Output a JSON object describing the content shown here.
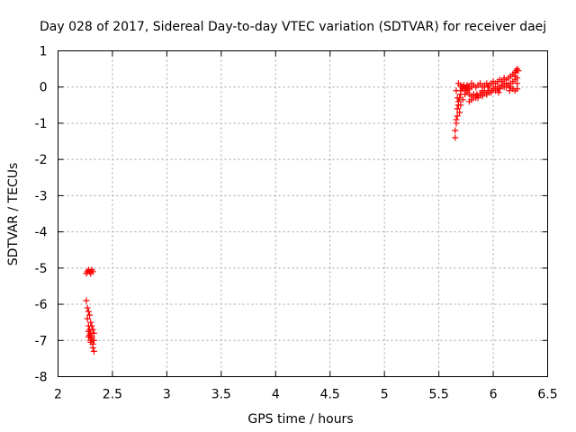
{
  "chart_data": {
    "type": "scatter",
    "title": "Day 028 of 2017, Sidereal Day-to-day VTEC variation (SDTVAR) for receiver daej",
    "xlabel": "GPS time / hours",
    "ylabel": "SDTVAR / TECUs",
    "xlim": [
      2,
      6.5
    ],
    "ylim": [
      -8,
      1
    ],
    "x_ticks": [
      2,
      2.5,
      3,
      3.5,
      4,
      4.5,
      5,
      5.5,
      6,
      6.5
    ],
    "y_ticks": [
      -8,
      -7,
      -6,
      -5,
      -4,
      -3,
      -2,
      -1,
      0,
      1
    ],
    "x_tick_labels": [
      "2",
      "2.5",
      "3",
      "3.5",
      "4",
      "4.5",
      "5",
      "5.5",
      "6",
      "6.5"
    ],
    "y_tick_labels": [
      "-8",
      "-7",
      "-6",
      "-5",
      "-4",
      "-3",
      "-2",
      "-1",
      "0",
      "1"
    ],
    "grid": true,
    "marker": "+",
    "color": "#ff0000",
    "series": [
      {
        "name": "SDTVAR",
        "x": [
          2.26,
          2.27,
          2.28,
          2.29,
          2.3,
          2.31,
          2.32,
          2.26,
          2.27,
          2.27,
          2.28,
          2.28,
          2.28,
          2.29,
          2.29,
          2.3,
          2.3,
          2.3,
          2.31,
          2.31,
          2.32,
          2.32,
          2.33,
          2.33,
          2.33,
          2.32,
          2.31,
          2.3,
          2.29,
          2.28,
          5.65,
          5.65,
          5.66,
          5.66,
          5.67,
          5.67,
          5.68,
          5.68,
          5.69,
          5.7,
          5.7,
          5.71,
          5.72,
          5.73,
          5.74,
          5.75,
          5.76,
          5.77,
          5.78,
          5.8,
          5.82,
          5.84,
          5.86,
          5.88,
          5.9,
          5.92,
          5.94,
          5.96,
          5.98,
          6.0,
          6.02,
          6.04,
          6.06,
          6.08,
          6.1,
          6.12,
          6.14,
          6.16,
          6.18,
          6.2,
          6.21,
          6.22,
          6.23,
          5.68,
          5.7,
          5.72,
          5.74,
          5.76,
          5.78,
          5.8,
          5.82,
          5.84,
          5.86,
          5.88,
          5.9,
          5.92,
          5.94,
          5.96,
          5.98,
          6.0,
          6.02,
          6.04,
          6.06,
          6.08,
          6.1,
          6.12,
          6.14,
          6.16,
          6.18,
          6.2,
          6.22,
          5.78,
          5.8,
          5.82,
          5.84,
          5.86,
          5.88,
          5.9,
          5.92,
          5.94,
          5.96,
          5.98,
          6.0,
          6.02,
          6.04,
          6.06,
          6.08,
          6.1,
          6.12,
          6.14,
          6.16,
          6.18,
          6.2,
          6.22,
          5.66,
          5.67,
          5.68,
          5.69,
          5.7,
          5.72,
          5.74,
          5.76,
          5.78,
          5.8,
          5.85,
          5.9,
          5.95,
          6.0,
          6.05,
          6.1,
          6.15,
          6.2,
          6.22
        ],
        "y": [
          -5.15,
          -5.1,
          -5.05,
          -5.1,
          -5.15,
          -5.05,
          -5.1,
          -5.9,
          -6.1,
          -6.4,
          -6.2,
          -6.6,
          -6.9,
          -6.3,
          -6.7,
          -6.5,
          -6.8,
          -7.0,
          -6.6,
          -6.9,
          -6.7,
          -7.1,
          -6.8,
          -7.0,
          -7.3,
          -7.2,
          -6.95,
          -7.05,
          -6.85,
          -6.75,
          -1.4,
          -1.2,
          -1.0,
          -0.9,
          -0.8,
          -0.6,
          -0.5,
          -0.4,
          -0.3,
          -0.2,
          -0.1,
          0.0,
          0.0,
          0.05,
          -0.05,
          0.0,
          0.05,
          0.0,
          -0.05,
          0.0,
          0.05,
          0.0,
          0.05,
          0.1,
          0.0,
          0.05,
          0.1,
          0.05,
          0.1,
          0.15,
          0.1,
          0.15,
          0.2,
          0.15,
          0.25,
          0.2,
          0.25,
          0.3,
          0.35,
          0.4,
          0.45,
          0.5,
          0.45,
          0.1,
          0.05,
          -0.05,
          -0.1,
          -0.15,
          -0.2,
          -0.25,
          -0.2,
          -0.3,
          -0.25,
          -0.2,
          -0.15,
          -0.1,
          -0.2,
          -0.15,
          -0.1,
          -0.05,
          0.0,
          -0.05,
          0.0,
          0.05,
          0.1,
          0.0,
          0.05,
          0.1,
          0.15,
          0.2,
          0.25,
          -0.4,
          -0.35,
          -0.3,
          -0.25,
          -0.3,
          -0.2,
          -0.25,
          -0.15,
          -0.2,
          -0.1,
          -0.15,
          -0.05,
          -0.1,
          0.0,
          -0.05,
          0.05,
          0.0,
          0.1,
          0.05,
          0.0,
          -0.05,
          -0.1,
          -0.05,
          -0.1,
          -0.3,
          -0.5,
          -0.7,
          -0.5,
          -0.35,
          -0.2,
          -0.1,
          0.0,
          0.1,
          -0.2,
          -0.1,
          0.0,
          0.1,
          -0.15,
          0.2,
          -0.1,
          0.3,
          0.1
        ]
      }
    ]
  }
}
